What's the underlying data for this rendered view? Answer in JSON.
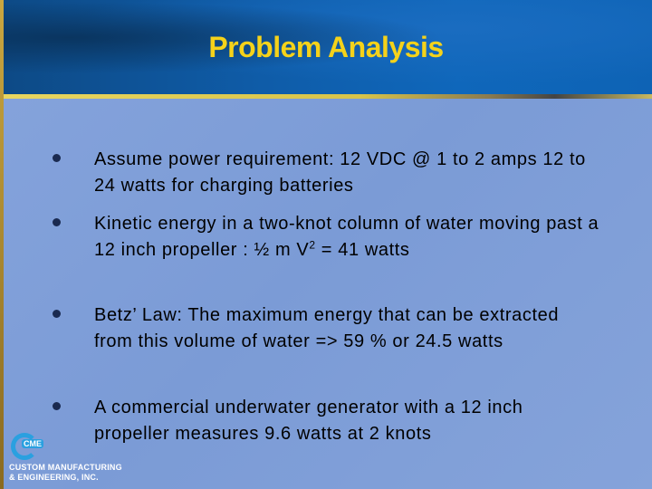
{
  "title": "Problem Analysis",
  "bullets": [
    {
      "text": "Assume power requirement:  12 VDC @ 1 to 2 amps 12 to  24 watts for charging batteries"
    },
    {
      "text_before": "Kinetic energy in a two-knot column of water moving past a 12 inch propeller :   ½ m V",
      "superscript": "2",
      "text_after": " =  41 watts"
    },
    {
      "text": "Betz’ Law: The maximum energy that can be extracted from this volume of water  => 59 % or 24.5 watts"
    },
    {
      "text": "A commercial underwater generator with a 12 inch propeller measures 9.6 watts at 2 knots"
    }
  ],
  "logo": {
    "mark": "CME",
    "line1": "CUSTOM MANUFACTURING",
    "line2": "& ENGINEERING, INC."
  },
  "colors": {
    "title": "#f5d21a",
    "header": "#0f5ca8",
    "body": "#7f9ed8",
    "accent_line": "#e8d660"
  }
}
